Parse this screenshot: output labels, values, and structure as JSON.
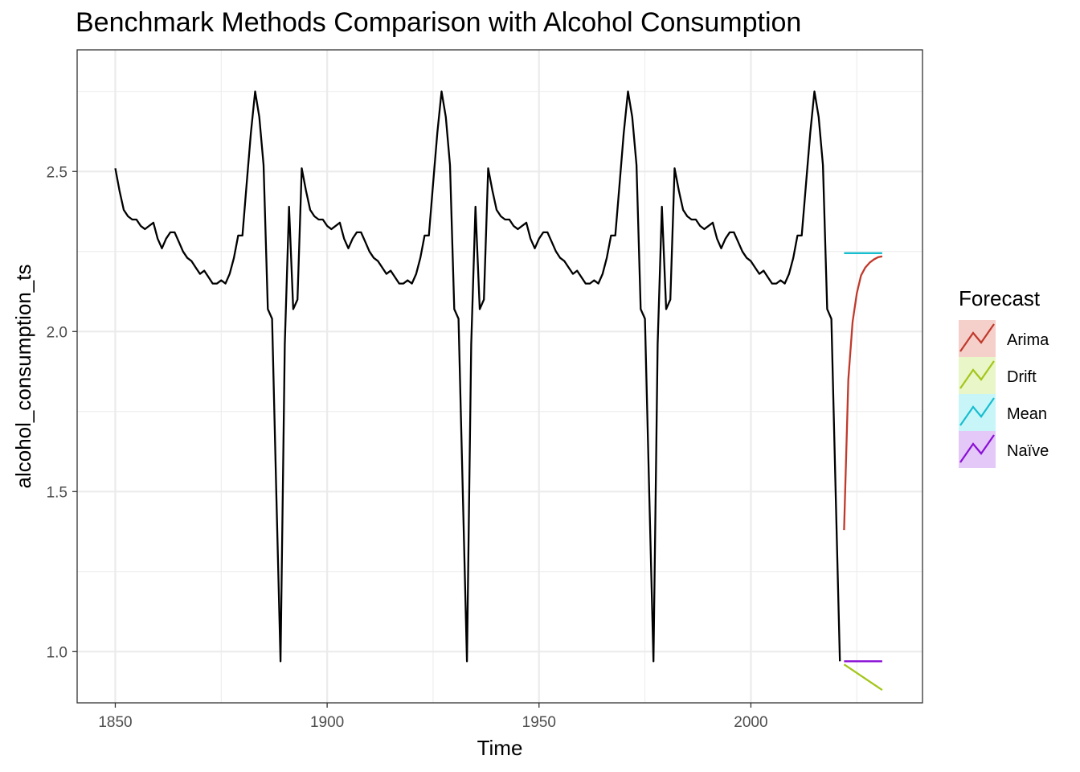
{
  "chart_data": {
    "type": "line",
    "title": "Benchmark Methods Comparison with Alcohol Consumption",
    "xlabel": "Time",
    "ylabel": "alcohol_consumption_ts",
    "xlim": [
      1841,
      2040.5
    ],
    "ylim": [
      0.84,
      2.88
    ],
    "x_ticks": [
      1850,
      1900,
      1950,
      2000
    ],
    "x_tick_labels": [
      "1850",
      "1900",
      "1950",
      "2000"
    ],
    "y_ticks": [
      1.0,
      1.5,
      2.0,
      2.5
    ],
    "y_tick_labels": [
      "1.0",
      "1.5",
      "2.0",
      "2.5"
    ],
    "grid": true,
    "legend_title": "Forecast",
    "legend_position": "right",
    "history": {
      "color": "#000000",
      "start": 1850,
      "values": [
        2.51,
        2.44,
        2.38,
        2.36,
        2.35,
        2.35,
        2.33,
        2.32,
        2.33,
        2.34,
        2.29,
        2.26,
        2.29,
        2.31,
        2.31,
        2.28,
        2.25,
        2.23,
        2.22,
        2.2,
        2.18,
        2.19,
        2.17,
        2.15,
        2.15,
        2.16,
        2.15,
        2.18,
        2.23,
        2.3,
        2.3,
        2.46,
        2.62,
        2.75,
        2.67,
        2.52,
        2.07,
        2.04,
        1.5,
        0.97,
        1.96,
        2.39,
        2.07,
        2.1,
        2.51
      ]
    },
    "series": [
      {
        "name": "Arima",
        "color": "#c0392b",
        "x": [
          2022,
          2023,
          2024,
          2025,
          2026,
          2027,
          2028,
          2029,
          2030,
          2031
        ],
        "values": [
          1.38,
          1.85,
          2.03,
          2.12,
          2.175,
          2.2,
          2.215,
          2.225,
          2.232,
          2.235
        ]
      },
      {
        "name": "Drift",
        "color": "#a3c61a",
        "x": [
          2022,
          2031
        ],
        "values": [
          0.96,
          0.88
        ]
      },
      {
        "name": "Mean",
        "color": "#17becf",
        "x": [
          2022,
          2031
        ],
        "values": [
          2.245,
          2.245
        ]
      },
      {
        "name": "Naïve",
        "color": "#8a0fd6",
        "x": [
          2022,
          2031
        ],
        "values": [
          0.97,
          0.97
        ]
      }
    ]
  }
}
